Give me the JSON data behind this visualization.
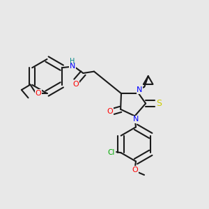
{
  "bg_color": "#e8e8e8",
  "atom_colors": {
    "C": "#1a1a1a",
    "N": "#0000ff",
    "O": "#ff0000",
    "S": "#cccc00",
    "Cl": "#00aa00",
    "H": "#008888"
  },
  "bond_color": "#1a1a1a",
  "bond_width": 1.5,
  "dbo": 0.014
}
